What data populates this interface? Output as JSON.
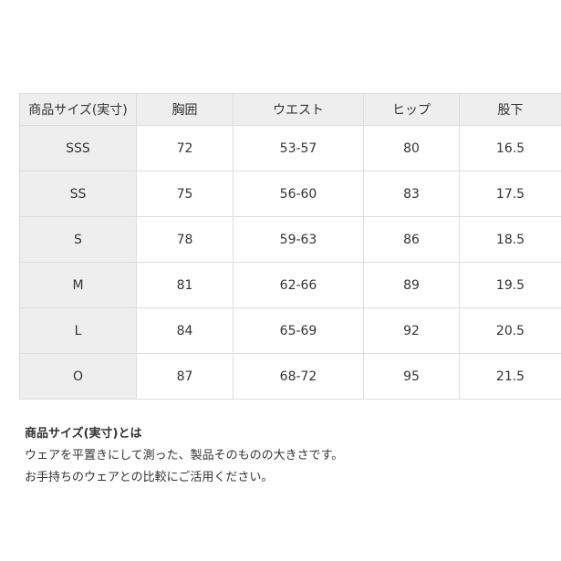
{
  "table": {
    "headers": [
      "商品サイズ(実寸)",
      "胸囲",
      "ウエスト",
      "ヒップ",
      "股下"
    ],
    "rows": [
      [
        "SSS",
        "72",
        "53-57",
        "80",
        "16.5"
      ],
      [
        "SS",
        "75",
        "56-60",
        "83",
        "17.5"
      ],
      [
        "S",
        "78",
        "59-63",
        "86",
        "18.5"
      ],
      [
        "M",
        "81",
        "62-66",
        "89",
        "19.5"
      ],
      [
        "L",
        "84",
        "65-69",
        "92",
        "20.5"
      ],
      [
        "O",
        "87",
        "68-72",
        "95",
        "21.5"
      ]
    ]
  },
  "note": {
    "title": "商品サイズ(実寸)とは",
    "lines": [
      "ウェアを平置きにして測った、製品そのものの大きさです。",
      "お手持ちのウェアとの比較にご活用ください。"
    ]
  },
  "colors": {
    "header_bg": "#eeeeee",
    "border": "#dddddd",
    "text": "#333333"
  }
}
